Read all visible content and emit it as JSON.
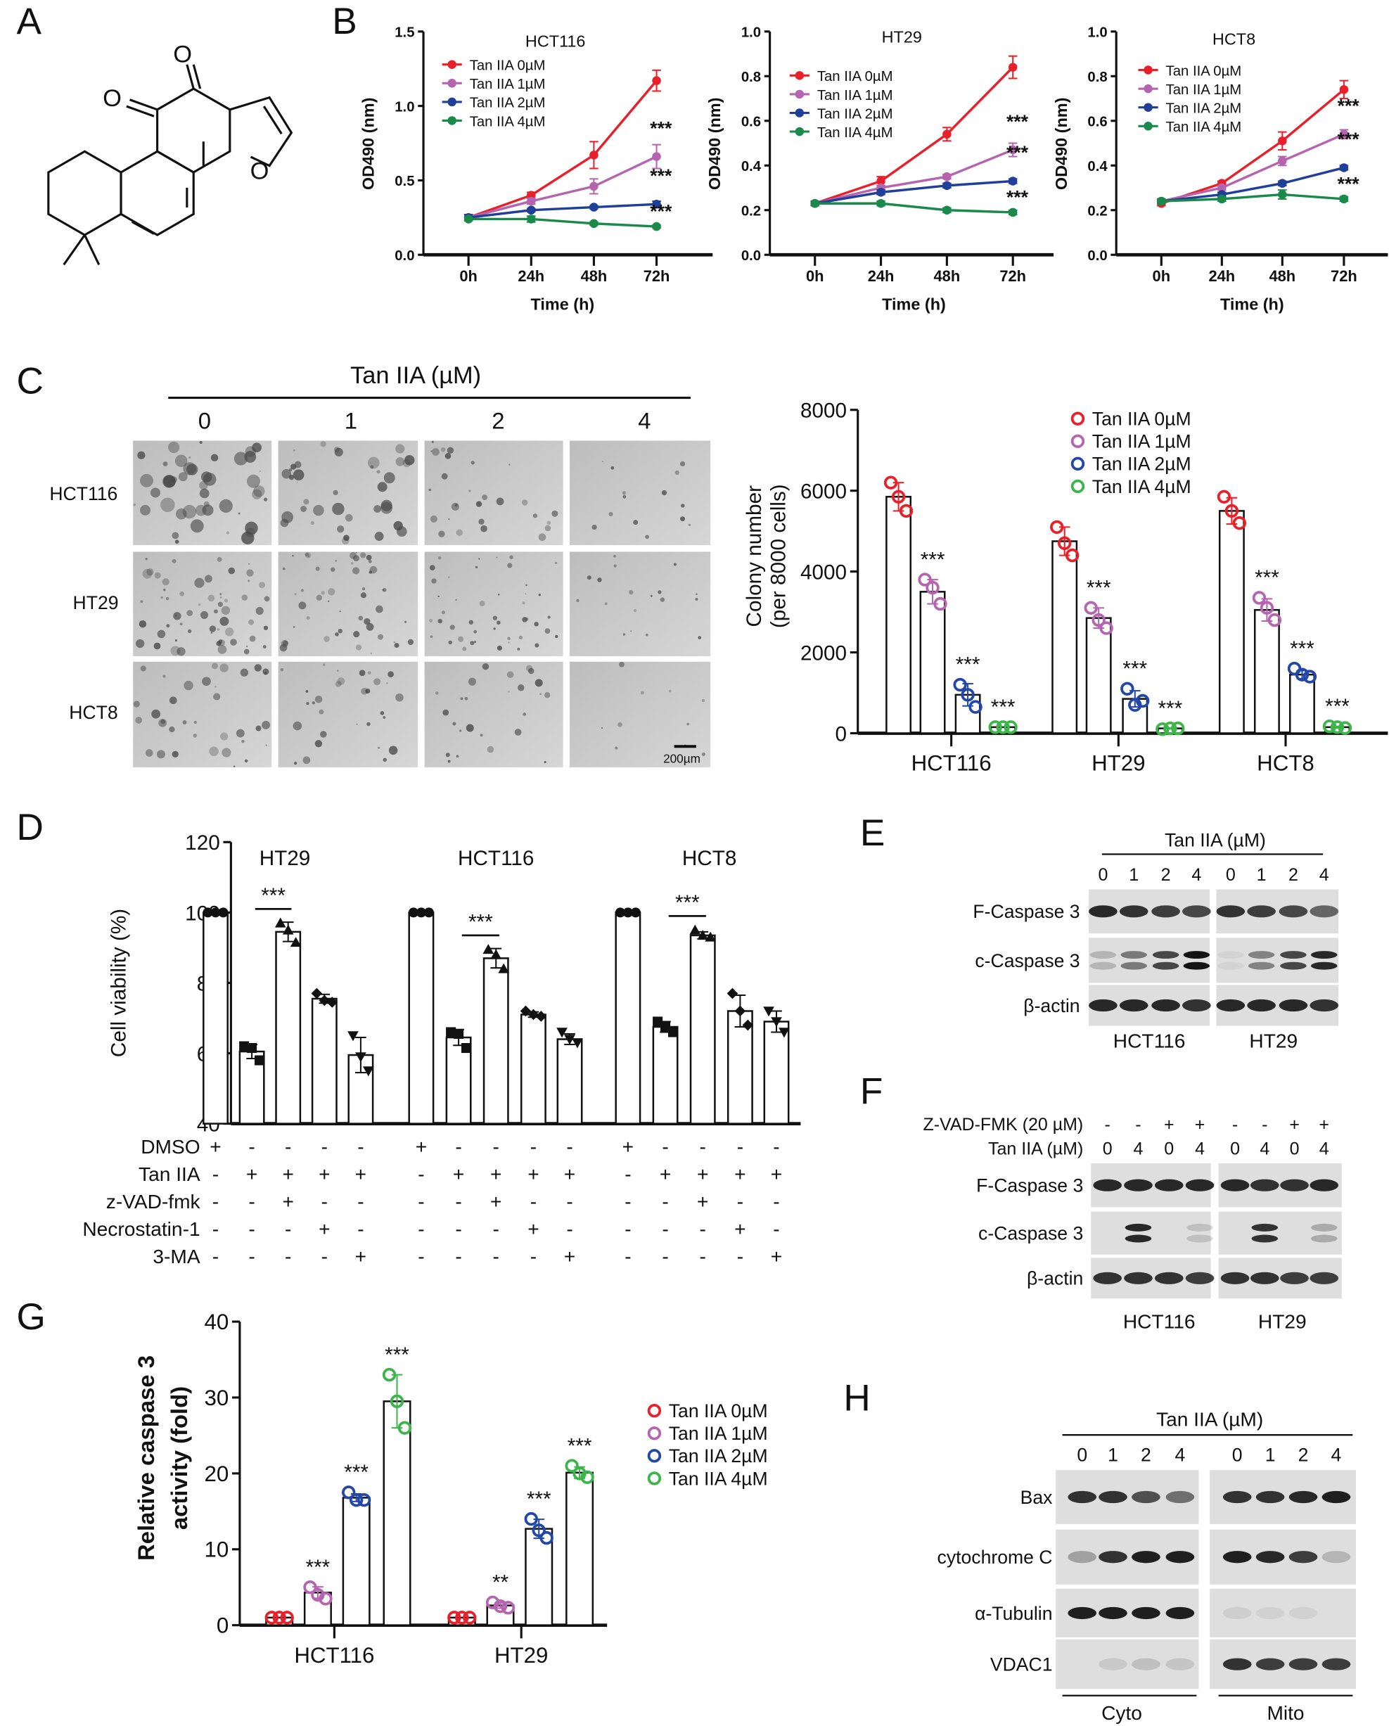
{
  "panels": [
    "A",
    "B",
    "C",
    "D",
    "E",
    "F",
    "G",
    "H"
  ],
  "colors": {
    "c0": "#e8202a",
    "c1": "#b565b0",
    "c2": "#1f3f98",
    "c3": "#1a8a4a",
    "c2_dots": "#2347a8",
    "c3_dots": "#3cb54a"
  },
  "structure": {
    "atoms": [
      "O",
      "O",
      "O"
    ]
  },
  "chart_data": [
    {
      "type": "line",
      "panel": "B",
      "title": "HCT116",
      "xlabel": "Time (h)",
      "ylabel": "OD490 (nm)",
      "categories": [
        "0h",
        "24h",
        "48h",
        "72h"
      ],
      "ylim": [
        0,
        1.5
      ],
      "ytick_labels": [
        "0.0",
        "0.5",
        "1.0",
        "1.5"
      ],
      "yticks": [
        0,
        0.5,
        1.0,
        1.5
      ],
      "series": [
        {
          "name": "Tan IIA 0µM",
          "values": [
            0.25,
            0.4,
            0.67,
            1.17
          ],
          "err": [
            0.02,
            0.02,
            0.09,
            0.07
          ],
          "sig": ""
        },
        {
          "name": "Tan IIA 1µM",
          "values": [
            0.25,
            0.36,
            0.46,
            0.66
          ],
          "err": [
            0.02,
            0.02,
            0.05,
            0.08
          ],
          "sig": "***"
        },
        {
          "name": "Tan IIA 2µM",
          "values": [
            0.25,
            0.3,
            0.32,
            0.34
          ],
          "err": [
            0.02,
            0.01,
            0.01,
            0.02
          ],
          "sig": "***"
        },
        {
          "name": "Tan IIA 4µM",
          "values": [
            0.24,
            0.24,
            0.21,
            0.19
          ],
          "err": [
            0.01,
            0.02,
            0.01,
            0.01
          ],
          "sig": "***"
        }
      ]
    },
    {
      "type": "line",
      "panel": "B",
      "title": "HT29",
      "xlabel": "Time (h)",
      "ylabel": "OD490 (nm)",
      "categories": [
        "0h",
        "24h",
        "48h",
        "72h"
      ],
      "ylim": [
        0,
        1.0
      ],
      "ytick_labels": [
        "0.0",
        "0.2",
        "0.4",
        "0.6",
        "0.8",
        "1.0"
      ],
      "yticks": [
        0,
        0.2,
        0.4,
        0.6,
        0.8,
        1.0
      ],
      "series": [
        {
          "name": "Tan IIA 0µM",
          "values": [
            0.23,
            0.33,
            0.54,
            0.84
          ],
          "err": [
            0.01,
            0.02,
            0.03,
            0.05
          ],
          "sig": ""
        },
        {
          "name": "Tan IIA 1µM",
          "values": [
            0.23,
            0.3,
            0.35,
            0.47
          ],
          "err": [
            0.01,
            0.01,
            0.01,
            0.03
          ],
          "sig": "***"
        },
        {
          "name": "Tan IIA 2µM",
          "values": [
            0.23,
            0.28,
            0.31,
            0.33
          ],
          "err": [
            0.01,
            0.01,
            0.01,
            0.01
          ],
          "sig": "***"
        },
        {
          "name": "Tan IIA 4µM",
          "values": [
            0.23,
            0.23,
            0.2,
            0.19
          ],
          "err": [
            0.01,
            0.01,
            0.01,
            0.01
          ],
          "sig": "***"
        }
      ]
    },
    {
      "type": "line",
      "panel": "B",
      "title": "HCT8",
      "xlabel": "Time (h)",
      "ylabel": "OD490 (nm)",
      "categories": [
        "0h",
        "24h",
        "48h",
        "72h"
      ],
      "ylim": [
        0,
        1.0
      ],
      "ytick_labels": [
        "0.0",
        "0.2",
        "0.4",
        "0.6",
        "0.8",
        "1.0"
      ],
      "yticks": [
        0,
        0.2,
        0.4,
        0.6,
        0.8,
        1.0
      ],
      "series": [
        {
          "name": "Tan IIA 0µM",
          "values": [
            0.23,
            0.32,
            0.51,
            0.74
          ],
          "err": [
            0.01,
            0.01,
            0.04,
            0.04
          ],
          "sig": ""
        },
        {
          "name": "Tan IIA 1µM",
          "values": [
            0.24,
            0.3,
            0.42,
            0.54
          ],
          "err": [
            0.01,
            0.01,
            0.02,
            0.02
          ],
          "sig": "***"
        },
        {
          "name": "Tan IIA 2µM",
          "values": [
            0.24,
            0.27,
            0.32,
            0.39
          ],
          "err": [
            0.01,
            0.01,
            0.01,
            0.01
          ],
          "sig": "***"
        },
        {
          "name": "Tan IIA 4µM",
          "values": [
            0.24,
            0.25,
            0.27,
            0.25
          ],
          "err": [
            0.01,
            0.01,
            0.02,
            0.01
          ],
          "sig": "***"
        }
      ]
    },
    {
      "type": "bar",
      "panel": "C",
      "ylabel": [
        "Colony number",
        "(per 8000 cells)"
      ],
      "ylim": [
        0,
        8000
      ],
      "ytick_labels": [
        "0",
        "2000",
        "4000",
        "6000",
        "8000"
      ],
      "yticks": [
        0,
        2000,
        4000,
        6000,
        8000
      ],
      "categories": [
        "HCT116",
        "HT29",
        "HCT8"
      ],
      "legend": [
        "Tan IIA 0µM",
        "Tan IIA 1µM",
        "Tan IIA 2µM",
        "Tan IIA 4µM"
      ],
      "groups": [
        {
          "means": [
            5850,
            3500,
            950,
            150
          ],
          "points": [
            [
              6200,
              5850,
              5500
            ],
            [
              3800,
              3600,
              3200
            ],
            [
              1200,
              950,
              650
            ],
            [
              150,
              150,
              150
            ]
          ],
          "sig": [
            "",
            "***",
            "***",
            "***"
          ]
        },
        {
          "means": [
            4750,
            2850,
            850,
            120
          ],
          "points": [
            [
              5100,
              4700,
              4400
            ],
            [
              3100,
              2800,
              2600
            ],
            [
              1100,
              700,
              800
            ],
            [
              100,
              120,
              120
            ]
          ],
          "sig": [
            "",
            "***",
            "***",
            "***"
          ]
        },
        {
          "means": [
            5500,
            3050,
            1450,
            150
          ],
          "points": [
            [
              5850,
              5500,
              5200
            ],
            [
              3350,
              3100,
              2800
            ],
            [
              1600,
              1450,
              1400
            ],
            [
              170,
              150,
              130
            ]
          ],
          "sig": [
            "",
            "***",
            "***",
            "***"
          ]
        }
      ]
    },
    {
      "type": "bar",
      "panel": "D",
      "ylabel": "Cell viability (%)",
      "ylim": [
        40,
        120
      ],
      "ytick_labels": [
        "40",
        "60",
        "80",
        "100",
        "120"
      ],
      "yticks": [
        40,
        60,
        80,
        100,
        120
      ],
      "categories": [
        "HT29",
        "HCT116",
        "HCT8"
      ],
      "groups": [
        {
          "means": [
            100,
            60.5,
            94.5,
            75.5,
            59.5
          ],
          "points": [
            [
              100,
              100,
              100
            ],
            [
              62,
              61.5,
              58
            ],
            [
              97,
              95,
              91.5
            ],
            [
              77,
              75,
              74.5
            ],
            [
              65,
              59,
              55
            ]
          ],
          "sig_between": [
            1,
            2
          ],
          "sig": "***"
        },
        {
          "means": [
            100,
            64.5,
            87,
            71,
            64
          ],
          "points": [
            [
              100,
              100,
              100
            ],
            [
              66,
              65.5,
              61.5
            ],
            [
              89.5,
              88,
              84
            ],
            [
              72,
              71,
              70.5
            ],
            [
              66,
              64,
              63
            ]
          ],
          "sig_between": [
            1,
            2
          ],
          "sig": "***"
        },
        {
          "means": [
            100,
            67.5,
            93.5,
            72,
            69
          ],
          "points": [
            [
              100,
              100,
              100
            ],
            [
              69,
              67.5,
              66
            ],
            [
              95,
              93.5,
              93
            ],
            [
              77,
              72,
              68
            ],
            [
              72,
              69,
              66
            ]
          ],
          "sig_between": [
            1,
            2
          ],
          "sig": "***"
        }
      ],
      "treatments": [
        {
          "label": "DMSO",
          "signs": [
            "+",
            "-",
            "-",
            "-",
            "-",
            "+",
            "-",
            "-",
            "-",
            "-",
            "+",
            "-",
            "-",
            "-",
            "-"
          ]
        },
        {
          "label": "Tan IIA",
          "signs": [
            "-",
            "+",
            "+",
            "+",
            "+",
            "-",
            "+",
            "+",
            "+",
            "+",
            "-",
            "+",
            "+",
            "+",
            "+"
          ]
        },
        {
          "label": "z-VAD-fmk",
          "signs": [
            "-",
            "-",
            "+",
            "-",
            "-",
            "-",
            "-",
            "+",
            "-",
            "-",
            "-",
            "-",
            "+",
            "-",
            "-"
          ]
        },
        {
          "label": "Necrostatin-1",
          "signs": [
            "-",
            "-",
            "-",
            "+",
            "-",
            "-",
            "-",
            "-",
            "+",
            "-",
            "-",
            "-",
            "-",
            "+",
            "-"
          ]
        },
        {
          "label": "3-MA",
          "signs": [
            "-",
            "-",
            "-",
            "-",
            "+",
            "-",
            "-",
            "-",
            "-",
            "+",
            "-",
            "-",
            "-",
            "-",
            "+"
          ]
        }
      ]
    },
    {
      "type": "bar",
      "panel": "G",
      "ylabel": [
        "Relative caspase 3",
        "activity (fold)"
      ],
      "ylim": [
        0,
        40
      ],
      "ytick_labels": [
        "0",
        "10",
        "20",
        "30",
        "40"
      ],
      "yticks": [
        0,
        10,
        20,
        30,
        40
      ],
      "categories": [
        "HCT116",
        "HT29"
      ],
      "legend": [
        "Tan IIA 0µM",
        "Tan IIA 1µM",
        "Tan IIA 2µM",
        "Tan IIA 4µM"
      ],
      "groups": [
        {
          "means": [
            1,
            4.3,
            16.8,
            29.5
          ],
          "points": [
            [
              1,
              1,
              1
            ],
            [
              5,
              4,
              3.5
            ],
            [
              17.5,
              16.5,
              16.5
            ],
            [
              33,
              29.5,
              26
            ]
          ],
          "sig": [
            "",
            "***",
            "***",
            "***"
          ]
        },
        {
          "means": [
            1,
            2.6,
            12.7,
            20.1
          ],
          "points": [
            [
              1,
              1,
              1
            ],
            [
              3,
              2.5,
              2.3
            ],
            [
              14,
              12.5,
              11.5
            ],
            [
              21,
              20,
              19.5
            ]
          ],
          "sig": [
            "",
            "**",
            "***",
            "***"
          ]
        }
      ]
    }
  ],
  "colony": {
    "header": "Tan IIA (µM)",
    "doses": [
      "0",
      "1",
      "2",
      "4"
    ],
    "rows": [
      "HCT116",
      "HT29",
      "HCT8"
    ],
    "scale_bar": "200µm"
  },
  "blotE": {
    "header": "Tan IIA (µM)",
    "lanes": [
      "0",
      "1",
      "2",
      "4",
      "0",
      "1",
      "2",
      "4"
    ],
    "groups": [
      "HCT116",
      "HT29"
    ],
    "rows": [
      {
        "label": "F-Caspase 3",
        "intensity": [
          [
            0.9,
            0.85,
            0.8,
            0.75
          ],
          [
            0.85,
            0.8,
            0.75,
            0.6
          ]
        ]
      },
      {
        "label": "c-Caspase 3",
        "double": true,
        "intensity": [
          [
            0.2,
            0.5,
            0.75,
            1.0
          ],
          [
            0.05,
            0.45,
            0.75,
            0.9
          ]
        ]
      },
      {
        "label": "β-actin",
        "intensity": [
          [
            0.9,
            0.9,
            0.9,
            0.85
          ],
          [
            0.9,
            0.9,
            0.9,
            0.85
          ]
        ]
      }
    ]
  },
  "blotF": {
    "conditions": [
      {
        "label": "Z-VAD-FMK (20 µM)",
        "signs": [
          "-",
          "-",
          "+",
          "+",
          "-",
          "-",
          "+",
          "+"
        ]
      },
      {
        "label": "Tan IIA (µM)",
        "signs": [
          "0",
          "4",
          "0",
          "4",
          "0",
          "4",
          "0",
          "4"
        ]
      }
    ],
    "groups": [
      "HCT116",
      "HT29"
    ],
    "rows": [
      {
        "label": "F-Caspase 3",
        "intensity": [
          [
            0.9,
            0.9,
            0.9,
            0.9
          ],
          [
            0.9,
            0.85,
            0.85,
            0.9
          ]
        ]
      },
      {
        "label": "c-Caspase 3",
        "double": true,
        "intensity": [
          [
            0,
            0.9,
            0,
            0.15
          ],
          [
            0,
            0.85,
            0,
            0.25
          ]
        ]
      },
      {
        "label": "β-actin",
        "intensity": [
          [
            0.85,
            0.85,
            0.85,
            0.8
          ],
          [
            0.85,
            0.85,
            0.8,
            0.8
          ]
        ]
      }
    ]
  },
  "blotH": {
    "header": "Tan IIA (µM)",
    "lanes": [
      "0",
      "1",
      "2",
      "4",
      "0",
      "1",
      "2",
      "4"
    ],
    "groups": [
      "Cyto",
      "Mito"
    ],
    "rows": [
      {
        "label": "Bax",
        "intensity": [
          [
            0.85,
            0.85,
            0.7,
            0.55
          ],
          [
            0.85,
            0.85,
            0.9,
            0.95
          ]
        ]
      },
      {
        "label": "cytochrome C",
        "intensity": [
          [
            0.3,
            0.85,
            0.95,
            0.95
          ],
          [
            0.95,
            0.9,
            0.8,
            0.2
          ]
        ]
      },
      {
        "label": "α-Tubulin",
        "intensity": [
          [
            0.95,
            0.95,
            0.95,
            0.95
          ],
          [
            0.08,
            0.06,
            0.06,
            0
          ]
        ]
      },
      {
        "label": "VDAC1",
        "intensity": [
          [
            0,
            0.1,
            0.15,
            0.12
          ],
          [
            0.85,
            0.8,
            0.8,
            0.8
          ]
        ]
      }
    ]
  }
}
